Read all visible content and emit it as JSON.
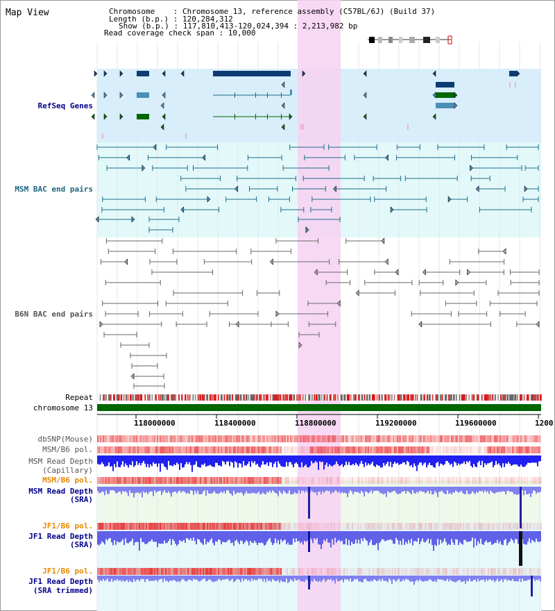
{
  "title": "Map View",
  "info": {
    "chromosome_line": "Chromosome    : Chromosome 13, reference assembly (C57BL/6J) (Build 37)",
    "length_line": "Length (b.p.) : 120,284,312",
    "show_line": "Show (b.p.) : 117,810,413-120,024,394 : 2,213,982 bp",
    "coverage_line": "Read coverage check span : 10,000"
  },
  "tracks": {
    "refseq": "RefSeq Genes",
    "msm_bac": "MSM BAC end pairs",
    "b6n_bac": "B6N BAC end pairs",
    "repeat": "Repeat",
    "chromosome": "chromosome 13",
    "dbsnp": "dbSNP(Mouse)",
    "msm_pol1": "MSM/B6 pol.",
    "msm_depth_cap_1": "MSM Read Depth",
    "msm_depth_cap_2": "(Capillary)",
    "msm_pol2": "MSM/B6 pol.",
    "msm_depth_sra_1": "MSM Read Depth",
    "msm_depth_sra_2": "(SRA)",
    "jf1_pol1": "JF1/B6 pol.",
    "jf1_depth_sra_1": "JF1 Read Depth",
    "jf1_depth_sra_2": "(SRA)",
    "jf1_pol2": "JF1/B6 pol.",
    "jf1_depth_trim_1": "JF1 Read Depth",
    "jf1_depth_trim_2": "(SRA trimmed)"
  },
  "axis_ticks": [
    "118000000",
    "118400000",
    "118800000",
    "119200000",
    "119600000",
    "1200"
  ],
  "colors": {
    "highlight": "#f7d2f2",
    "refseq_bg": "#d8eefb",
    "msm_bg": "#e3f9f9",
    "gene_dark": "#0e3b73",
    "gene_mid": "#4a8fb8",
    "gene_green": "#006600",
    "msm_line": "#1b6b8a",
    "b6n_line": "#666666",
    "chrom_bar": "#006600",
    "label_blue": "#00008b",
    "label_teal": "#1a6680",
    "label_orange": "#e68a00"
  }
}
